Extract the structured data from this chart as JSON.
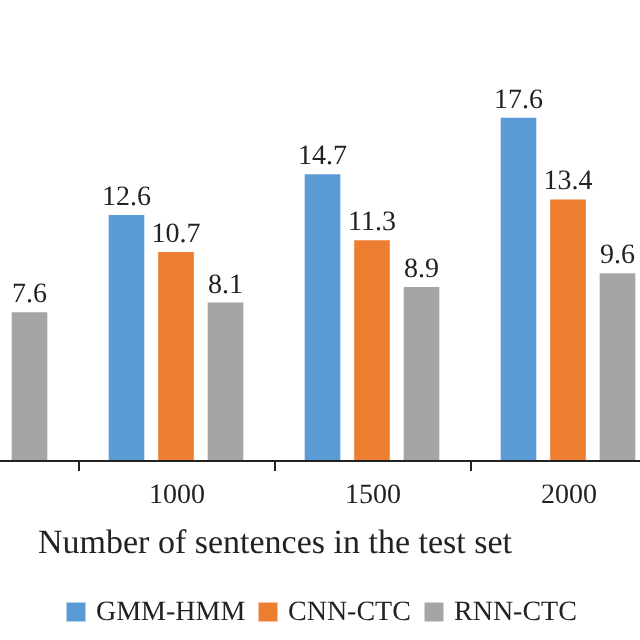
{
  "chart_data": {
    "type": "bar",
    "xlabel": "Number of sentences in the test set",
    "categories": [
      null,
      "1000",
      "1500",
      "2000"
    ],
    "series": [
      {
        "name": "GMM-HMM",
        "color": "#5b9bd5",
        "values": [
          null,
          12.6,
          14.7,
          17.6
        ]
      },
      {
        "name": "CNN-CTC",
        "color": "#ed7d31",
        "values": [
          null,
          10.7,
          11.3,
          13.4
        ]
      },
      {
        "name": "RNN-CTC",
        "color": "#a5a5a5",
        "values": [
          7.6,
          8.1,
          8.9,
          9.6
        ]
      }
    ],
    "data_labels": true,
    "legend": "bottom"
  }
}
